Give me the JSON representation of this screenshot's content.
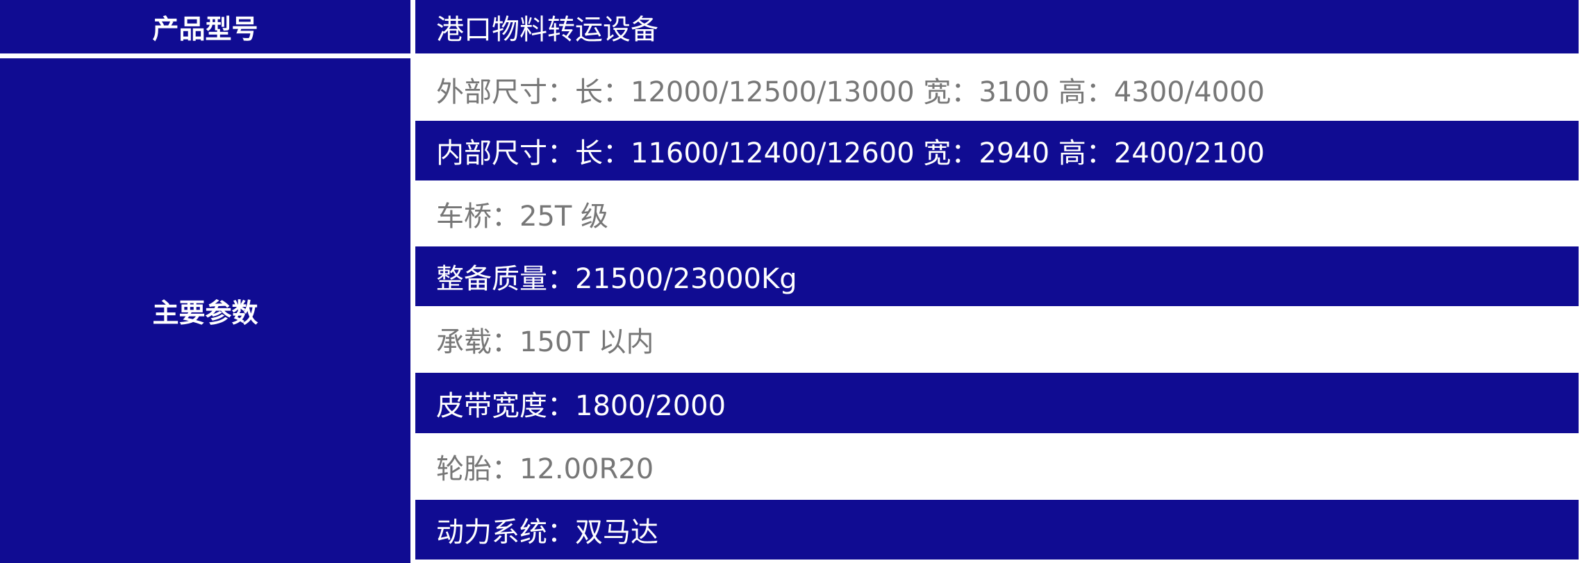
{
  "header": {
    "label": "产品型号",
    "value": "港口物料转运设备"
  },
  "params": {
    "label": "主要参数",
    "rows": [
      "外部尺寸：长：12000/12500/13000 宽：3100 高：4300/4000",
      "内部尺寸：长：11600/12400/12600 宽：2940 高：2400/2100",
      "车桥：25T 级",
      "整备质量：21500/23000Kg",
      "承载：150T 以内",
      "皮带宽度：1800/2000",
      "轮胎：12.00R20",
      "动力系统：双马达"
    ]
  },
  "colors": {
    "accent": "#100c92",
    "muted_text": "#777777"
  }
}
